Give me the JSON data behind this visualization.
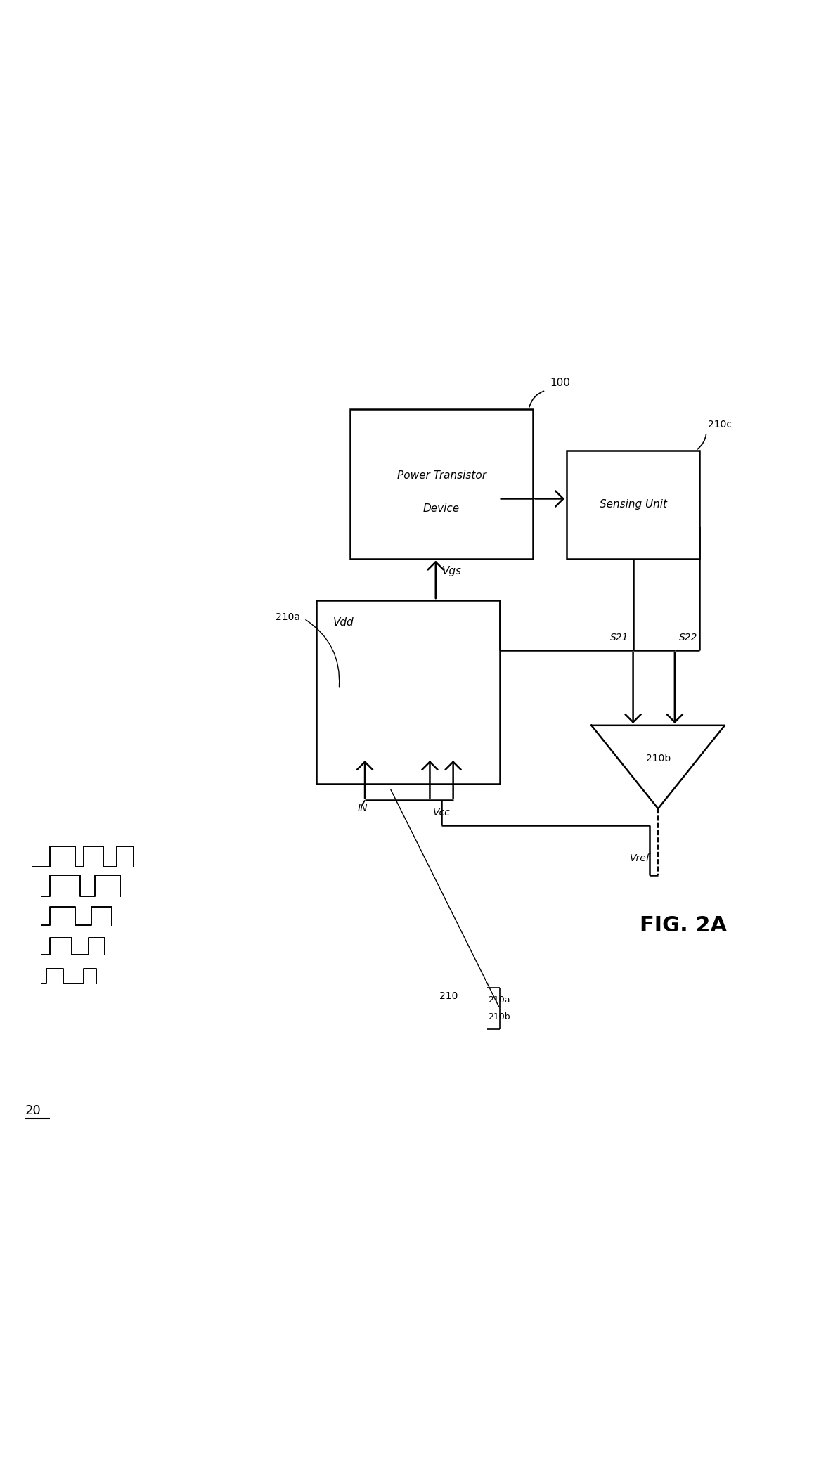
{
  "title": "FIG. 2A",
  "label_20": "20",
  "label_100": "100",
  "label_210": "210",
  "label_210a": "210a",
  "label_210b": "210b",
  "label_210c": "210c",
  "label_vdd": "Vdd",
  "label_vgs": "Vgs",
  "label_vcc": "Vcc",
  "label_vref": "Vref",
  "label_in": "IN",
  "label_s21": "S21",
  "label_s22": "S22",
  "label_power_transistor_line1": "Power Transistor",
  "label_power_transistor_line2": "Device",
  "label_sensing_unit": "Sensing Unit",
  "bg_color": "#ffffff",
  "line_color": "#000000",
  "fig_width": 11.85,
  "fig_height": 21.11
}
